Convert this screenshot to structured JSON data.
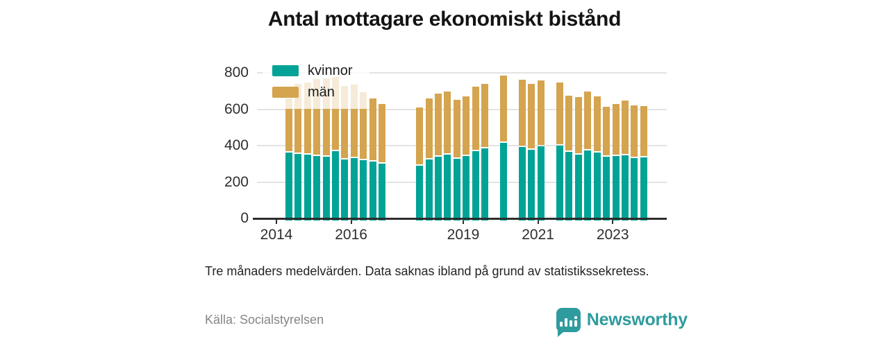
{
  "title": "Antal mottagare ekonomiskt bistånd",
  "footnote": "Tre månaders medelvärden. Data saknas ibland på grund av statistikssekretess.",
  "source": "Källa: Socialstyrelsen",
  "branding": {
    "name": "Newsworthy",
    "color": "#2e9b9e"
  },
  "chart_data": {
    "type": "bar",
    "stacked": true,
    "title": "Antal mottagare ekonomiskt bistånd",
    "xlabel": "",
    "ylabel": "",
    "ylim": [
      0,
      800
    ],
    "y_ticks": [
      0,
      200,
      400,
      600,
      800
    ],
    "x_ticks": [
      2014,
      2016,
      2019,
      2021,
      2023
    ],
    "grid": true,
    "legend_position": "top-left",
    "legend": [
      {
        "label": "kvinnor",
        "color": "#00a396"
      },
      {
        "label": "män",
        "color": "#d4a44f"
      }
    ],
    "points": [
      {
        "year": 2014,
        "q": 2,
        "kvinnor": 360,
        "man": 298
      },
      {
        "year": 2014,
        "q": 3,
        "kvinnor": 356,
        "man": 384
      },
      {
        "year": 2014,
        "q": 4,
        "kvinnor": 349,
        "man": 397
      },
      {
        "year": 2015,
        "q": 1,
        "kvinnor": 343,
        "man": 424
      },
      {
        "year": 2015,
        "q": 2,
        "kvinnor": 338,
        "man": 429
      },
      {
        "year": 2015,
        "q": 3,
        "kvinnor": 369,
        "man": 408
      },
      {
        "year": 2015,
        "q": 4,
        "kvinnor": 325,
        "man": 405
      },
      {
        "year": 2016,
        "q": 1,
        "kvinnor": 331,
        "man": 404
      },
      {
        "year": 2016,
        "q": 2,
        "kvinnor": 320,
        "man": 372
      },
      {
        "year": 2016,
        "q": 3,
        "kvinnor": 313,
        "man": 346
      },
      {
        "year": 2016,
        "q": 4,
        "kvinnor": 300,
        "man": 328
      },
      {
        "year": 2017,
        "q": 4,
        "kvinnor": 290,
        "man": 321
      },
      {
        "year": 2018,
        "q": 1,
        "kvinnor": 325,
        "man": 337
      },
      {
        "year": 2018,
        "q": 2,
        "kvinnor": 340,
        "man": 347
      },
      {
        "year": 2018,
        "q": 3,
        "kvinnor": 350,
        "man": 346
      },
      {
        "year": 2018,
        "q": 4,
        "kvinnor": 328,
        "man": 325
      },
      {
        "year": 2019,
        "q": 1,
        "kvinnor": 343,
        "man": 328
      },
      {
        "year": 2019,
        "q": 2,
        "kvinnor": 369,
        "man": 354
      },
      {
        "year": 2019,
        "q": 3,
        "kvinnor": 385,
        "man": 354
      },
      {
        "year": 2020,
        "q": 1,
        "kvinnor": 415,
        "man": 371
      },
      {
        "year": 2020,
        "q": 3,
        "kvinnor": 392,
        "man": 369
      },
      {
        "year": 2020,
        "q": 4,
        "kvinnor": 378,
        "man": 363
      },
      {
        "year": 2021,
        "q": 1,
        "kvinnor": 396,
        "man": 361
      },
      {
        "year": 2021,
        "q": 3,
        "kvinnor": 400,
        "man": 348
      },
      {
        "year": 2021,
        "q": 4,
        "kvinnor": 365,
        "man": 309
      },
      {
        "year": 2022,
        "q": 1,
        "kvinnor": 350,
        "man": 315
      },
      {
        "year": 2022,
        "q": 2,
        "kvinnor": 375,
        "man": 325
      },
      {
        "year": 2022,
        "q": 3,
        "kvinnor": 360,
        "man": 308
      },
      {
        "year": 2022,
        "q": 4,
        "kvinnor": 340,
        "man": 275
      },
      {
        "year": 2023,
        "q": 1,
        "kvinnor": 344,
        "man": 286
      },
      {
        "year": 2023,
        "q": 2,
        "kvinnor": 347,
        "man": 302
      },
      {
        "year": 2023,
        "q": 3,
        "kvinnor": 333,
        "man": 290
      },
      {
        "year": 2023,
        "q": 4,
        "kvinnor": 337,
        "man": 280
      }
    ]
  }
}
